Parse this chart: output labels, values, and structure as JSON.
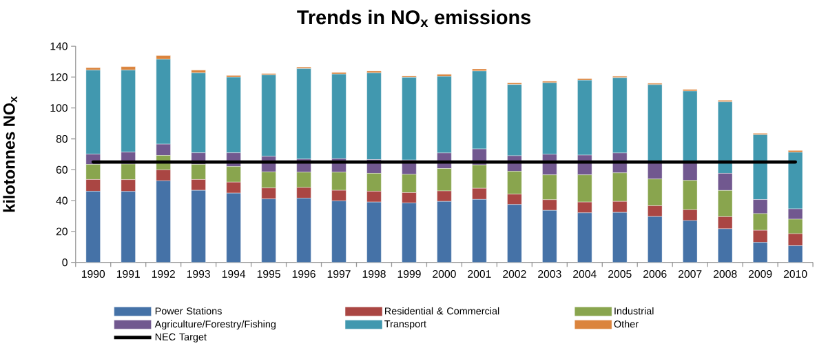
{
  "chart_data": {
    "type": "bar",
    "stacked": true,
    "title": "Trends in NO$_{x}$ emissions",
    "ylabel": "kilotonnes NO$_{x}$",
    "categories": [
      "1990",
      "1991",
      "1992",
      "1993",
      "1994",
      "1995",
      "1996",
      "1997",
      "1998",
      "1999",
      "2000",
      "2001",
      "2002",
      "2003",
      "2004",
      "2005",
      "2006",
      "2007",
      "2008",
      "2009",
      "2010"
    ],
    "ylim": [
      0,
      140
    ],
    "yticks": [
      0,
      20,
      40,
      60,
      80,
      100,
      120,
      140
    ],
    "legend": "bottom",
    "series": [
      {
        "name": "Power Stations",
        "color": "#4572a7",
        "values": [
          46.1,
          46.0,
          52.9,
          46.7,
          44.9,
          41.1,
          41.6,
          39.8,
          39.1,
          38.5,
          39.5,
          40.8,
          37.5,
          33.7,
          32.1,
          32.4,
          29.7,
          27.1,
          21.8,
          13.0,
          10.8
        ]
      },
      {
        "name": "Residential & Commercial",
        "color": "#aa4643",
        "values": [
          7.6,
          7.6,
          7.0,
          7.0,
          7.1,
          7.1,
          6.9,
          6.9,
          7.0,
          6.7,
          6.8,
          7.2,
          6.7,
          6.9,
          7.0,
          7.1,
          7.0,
          7.0,
          7.8,
          7.8,
          7.8
        ]
      },
      {
        "name": "Industrial",
        "color": "#89a54e",
        "values": [
          9.8,
          10.1,
          9.4,
          9.8,
          10.1,
          10.4,
          9.9,
          11.7,
          11.6,
          11.8,
          14.5,
          15.1,
          14.8,
          16.1,
          17.6,
          18.5,
          17.3,
          19.0,
          17.0,
          10.8,
          9.4
        ]
      },
      {
        "name": "Agriculture/Forestry/Fishing",
        "color": "#71588f",
        "values": [
          6.6,
          7.7,
          7.3,
          7.5,
          8.9,
          10.1,
          8.5,
          8.8,
          8.9,
          9.3,
          10.1,
          10.4,
          10.1,
          13.3,
          12.8,
          12.9,
          11.6,
          12.5,
          11.1,
          9.1,
          6.7
        ]
      },
      {
        "name": "Transport",
        "color": "#4198af",
        "values": [
          54.4,
          53.1,
          54.9,
          51.7,
          48.9,
          52.7,
          58.6,
          54.8,
          56.1,
          53.5,
          49.6,
          50.5,
          46.1,
          46.4,
          48.5,
          48.7,
          49.5,
          45.4,
          46.3,
          42.0,
          36.6
        ]
      },
      {
        "name": "Other",
        "color": "#db843d",
        "values": [
          1.6,
          2.3,
          2.5,
          1.8,
          1.2,
          0.9,
          1.0,
          1.0,
          1.3,
          1.0,
          1.3,
          1.3,
          1.1,
          0.9,
          1.0,
          1.0,
          0.9,
          1.0,
          1.0,
          0.9,
          1.2
        ]
      },
      {
        "name": "NEC Target",
        "type": "line",
        "color": "#000000",
        "values": [
          65,
          65,
          65,
          65,
          65,
          65,
          65,
          65,
          65,
          65,
          65,
          65,
          65,
          65,
          65,
          65,
          65,
          65,
          65,
          65,
          65
        ]
      }
    ]
  }
}
